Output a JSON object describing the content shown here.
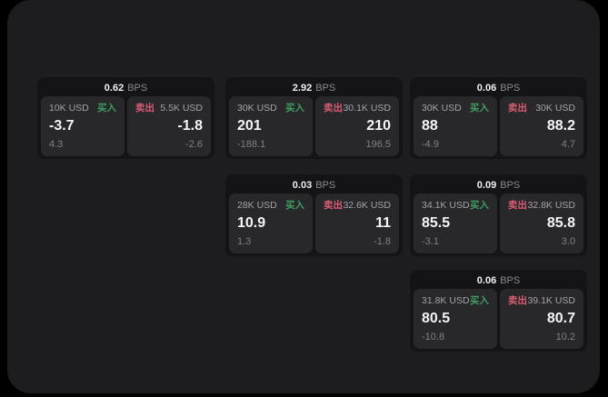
{
  "colors": {
    "page_bg": "#000000",
    "surface_bg": "#1d1d1f",
    "card_bg": "#141416",
    "panel_bg": "#28282b",
    "buy_green": "#3f9e5f",
    "sell_red": "#d85c73"
  },
  "labels": {
    "bps": "BPS",
    "buy": "买入",
    "sell": "卖出"
  },
  "cards": [
    {
      "bps": "0.62",
      "buy": {
        "amount": "10K USD",
        "price": "-3.7",
        "delta": "4.3"
      },
      "sell": {
        "amount": "5.5K USD",
        "price": "-1.8",
        "delta": "-2.6"
      }
    },
    {
      "bps": "2.92",
      "buy": {
        "amount": "30K USD",
        "price": "201",
        "delta": "-188.1"
      },
      "sell": {
        "amount": "30.1K USD",
        "price": "210",
        "delta": "196.5"
      }
    },
    {
      "bps": "0.06",
      "buy": {
        "amount": "30K USD",
        "price": "88",
        "delta": "-4.9"
      },
      "sell": {
        "amount": "30K USD",
        "price": "88.2",
        "delta": "4.7"
      }
    },
    {
      "bps": "0.03",
      "buy": {
        "amount": "28K USD",
        "price": "10.9",
        "delta": "1.3"
      },
      "sell": {
        "amount": "32.6K USD",
        "price": "11",
        "delta": "-1.8"
      }
    },
    {
      "bps": "0.09",
      "buy": {
        "amount": "34.1K USD",
        "price": "85.5",
        "delta": "-3.1"
      },
      "sell": {
        "amount": "32.8K USD",
        "price": "85.8",
        "delta": "3.0"
      }
    },
    {
      "bps": "0.06",
      "buy": {
        "amount": "31.8K USD",
        "price": "80.5",
        "delta": "-10.8"
      },
      "sell": {
        "amount": "39.1K USD",
        "price": "80.7",
        "delta": "10.2"
      }
    }
  ]
}
